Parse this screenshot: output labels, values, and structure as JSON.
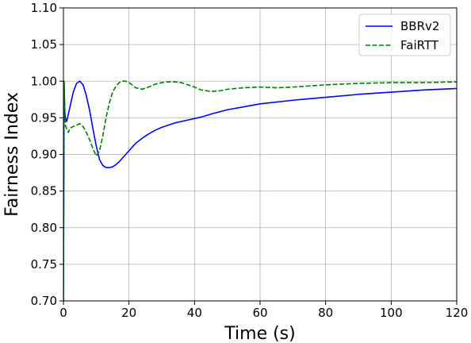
{
  "chart_data": {
    "type": "line",
    "xlabel": "Time (s)",
    "ylabel": "Fairness Index",
    "xlim": [
      0,
      120
    ],
    "ylim": [
      0.7,
      1.1
    ],
    "xticks": [
      0,
      20,
      40,
      60,
      80,
      100,
      120
    ],
    "xtick_labels": [
      "0",
      "20",
      "40",
      "60",
      "80",
      "100",
      "120"
    ],
    "yticks": [
      0.7,
      0.75,
      0.8,
      0.85,
      0.9,
      0.95,
      1.0,
      1.05,
      1.1
    ],
    "ytick_labels": [
      "0.70",
      "0.75",
      "0.80",
      "0.85",
      "0.90",
      "0.95",
      "1.00",
      "1.05",
      "1.10"
    ],
    "grid": true,
    "legend_position": "top-right",
    "series": [
      {
        "name": "BBRv2",
        "color": "#0000ff",
        "style": "solid",
        "x": [
          0,
          0.2,
          0.4,
          0.6,
          1,
          1.5,
          2,
          3,
          4,
          5,
          6,
          7,
          8,
          9,
          10,
          11,
          12,
          13,
          14,
          15,
          16,
          17,
          18,
          20,
          22,
          24,
          26,
          28,
          30,
          32,
          34,
          36,
          38,
          40,
          42,
          45,
          50,
          55,
          60,
          70,
          80,
          90,
          100,
          110,
          120
        ],
        "y": [
          0.7,
          1.0,
          0.96,
          0.95,
          0.945,
          0.955,
          0.965,
          0.985,
          0.997,
          1.0,
          0.995,
          0.98,
          0.96,
          0.935,
          0.912,
          0.893,
          0.885,
          0.882,
          0.882,
          0.883,
          0.886,
          0.89,
          0.895,
          0.905,
          0.915,
          0.922,
          0.928,
          0.933,
          0.937,
          0.94,
          0.943,
          0.945,
          0.947,
          0.949,
          0.951,
          0.955,
          0.961,
          0.965,
          0.969,
          0.974,
          0.978,
          0.982,
          0.985,
          0.988,
          0.99
        ]
      },
      {
        "name": "FaiRTT",
        "color": "#008000",
        "style": "dashed",
        "x": [
          0,
          0.2,
          0.4,
          0.6,
          1,
          1.5,
          2,
          3,
          4,
          5,
          6,
          7,
          8,
          9,
          10,
          11,
          12,
          13,
          14,
          15,
          16,
          17,
          18,
          19,
          20,
          21,
          22,
          24,
          26,
          28,
          30,
          32,
          34,
          36,
          38,
          40,
          42,
          45,
          48,
          50,
          55,
          60,
          65,
          70,
          80,
          90,
          100,
          110,
          120
        ],
        "y": [
          0.7,
          1.0,
          0.96,
          0.94,
          0.935,
          0.93,
          0.936,
          0.938,
          0.94,
          0.942,
          0.938,
          0.93,
          0.92,
          0.908,
          0.898,
          0.905,
          0.925,
          0.95,
          0.97,
          0.985,
          0.993,
          0.998,
          1.0,
          1.0,
          0.998,
          0.995,
          0.991,
          0.989,
          0.992,
          0.996,
          0.998,
          0.999,
          0.999,
          0.998,
          0.995,
          0.992,
          0.988,
          0.986,
          0.987,
          0.989,
          0.991,
          0.992,
          0.991,
          0.992,
          0.995,
          0.997,
          0.998,
          0.998,
          0.999
        ]
      }
    ]
  }
}
